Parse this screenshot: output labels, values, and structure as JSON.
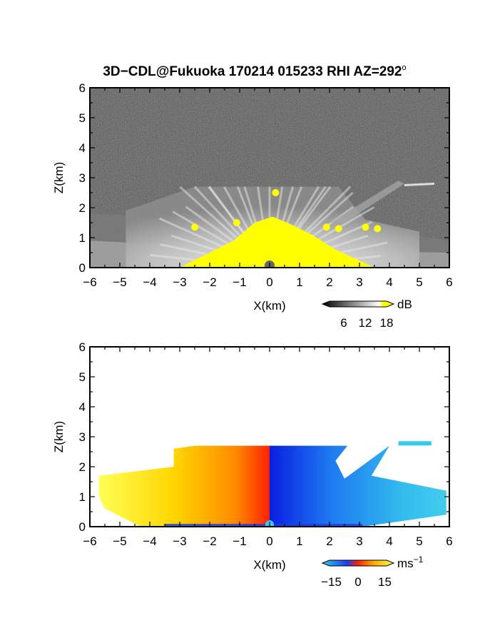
{
  "title": "3D−CDL@Fukuoka 170214 015233 RHI AZ=292",
  "title_degree": "o",
  "colors": {
    "highlight": "#ffff00",
    "velocity_negative": "#1a3cf0",
    "velocity_near_zero": "#ff2200",
    "velocity_positive": "#ffff44",
    "cyan": "#33ccee"
  },
  "chart_data": [
    {
      "type": "heatmap",
      "panel": "intensity",
      "xlabel": "X(km)",
      "ylabel": "Z(km)",
      "xlim": [
        -6,
        6
      ],
      "ylim": [
        0,
        6
      ],
      "x_ticks": [
        "−6",
        "−5",
        "−4",
        "−3",
        "−2",
        "−1",
        "0",
        "1",
        "2",
        "3",
        "4",
        "5",
        "6"
      ],
      "y_ticks": [
        "0",
        "1",
        "2",
        "3",
        "4",
        "5",
        "6"
      ],
      "echo_top_km": 2.7,
      "colorbar": {
        "unit": "dB",
        "tick_labels": [
          "6",
          "12",
          "18"
        ],
        "ticks": [
          6,
          12,
          18
        ],
        "range": [
          0,
          20
        ],
        "colors": [
          "#000000",
          "#ffffff",
          "#ffff00"
        ]
      }
    },
    {
      "type": "heatmap",
      "panel": "velocity",
      "xlabel": "X(km)",
      "ylabel": "Z(km)",
      "xlim": [
        -6,
        6
      ],
      "ylim": [
        0,
        6
      ],
      "x_ticks": [
        "−6",
        "−5",
        "−4",
        "−3",
        "−2",
        "−1",
        "0",
        "1",
        "2",
        "3",
        "4",
        "5",
        "6"
      ],
      "y_ticks": [
        "0",
        "1",
        "2",
        "3",
        "4",
        "5",
        "6"
      ],
      "echo_top_km": 2.7,
      "colorbar": {
        "unit": "ms",
        "unit_exponent": "−1",
        "tick_labels": [
          "−15",
          "0",
          "15"
        ],
        "ticks": [
          -15,
          0,
          15
        ],
        "range": [
          -20,
          20
        ],
        "colors": [
          "#33ccee",
          "#1a3cf0",
          "#ff2200",
          "#ffaa00",
          "#ffff44"
        ]
      }
    }
  ]
}
